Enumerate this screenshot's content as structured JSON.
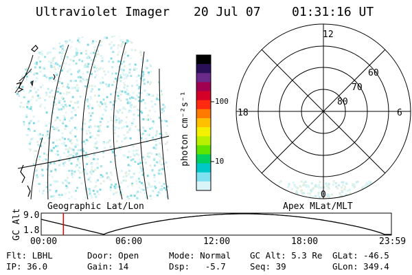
{
  "header": {
    "title": "Ultraviolet Imager",
    "date": "20 Jul 07",
    "time": "01:31:16 UT"
  },
  "geographic_panel": {
    "label": "Geographic Lat/Lon"
  },
  "colorbar": {
    "unit_label": "photon cm⁻²s⁻¹",
    "ticks": [
      "100",
      "10"
    ],
    "colors": [
      "#000000",
      "#2a1057",
      "#6a2a8a",
      "#a0004f",
      "#d40028",
      "#ff2a10",
      "#ff7a00",
      "#ffc000",
      "#f5ef00",
      "#b9ef00",
      "#5fe400",
      "#00d060",
      "#00c8c8",
      "#7fe0f0",
      "#d9f5f8"
    ]
  },
  "polar_panel": {
    "label": "Apex MLat/MLT",
    "mlt_labels": [
      "12",
      "18",
      "6",
      "0"
    ],
    "lat_labels": [
      "60",
      "70",
      "80"
    ]
  },
  "timeline": {
    "ylabel": "GC Alt",
    "y_ticks": [
      "9.0",
      "1.8"
    ],
    "x_ticks": [
      "00:00",
      "06:00",
      "12:00",
      "18:00",
      "23:59"
    ],
    "current_marker_hours": 1.52,
    "marker_color": "#e00000"
  },
  "params": {
    "flt_label": "Flt:",
    "flt_value": "LBHL",
    "ip_label": "IP:",
    "ip_value": "36.0",
    "door_label": "Door:",
    "door_value": "Open",
    "gain_label": "Gain:",
    "gain_value": "14",
    "mode_label": "Mode:",
    "mode_value": "Normal",
    "dsp_label": "Dsp:",
    "dsp_value": "-5.7",
    "gcalt_label": "GC Alt:",
    "gcalt_value": "5.3 Re",
    "seq_label": "Seq:",
    "seq_value": "39",
    "glat_label": "GLat:",
    "glat_value": "-46.5",
    "glon_label": "GLon:",
    "glon_value": "349.4"
  }
}
